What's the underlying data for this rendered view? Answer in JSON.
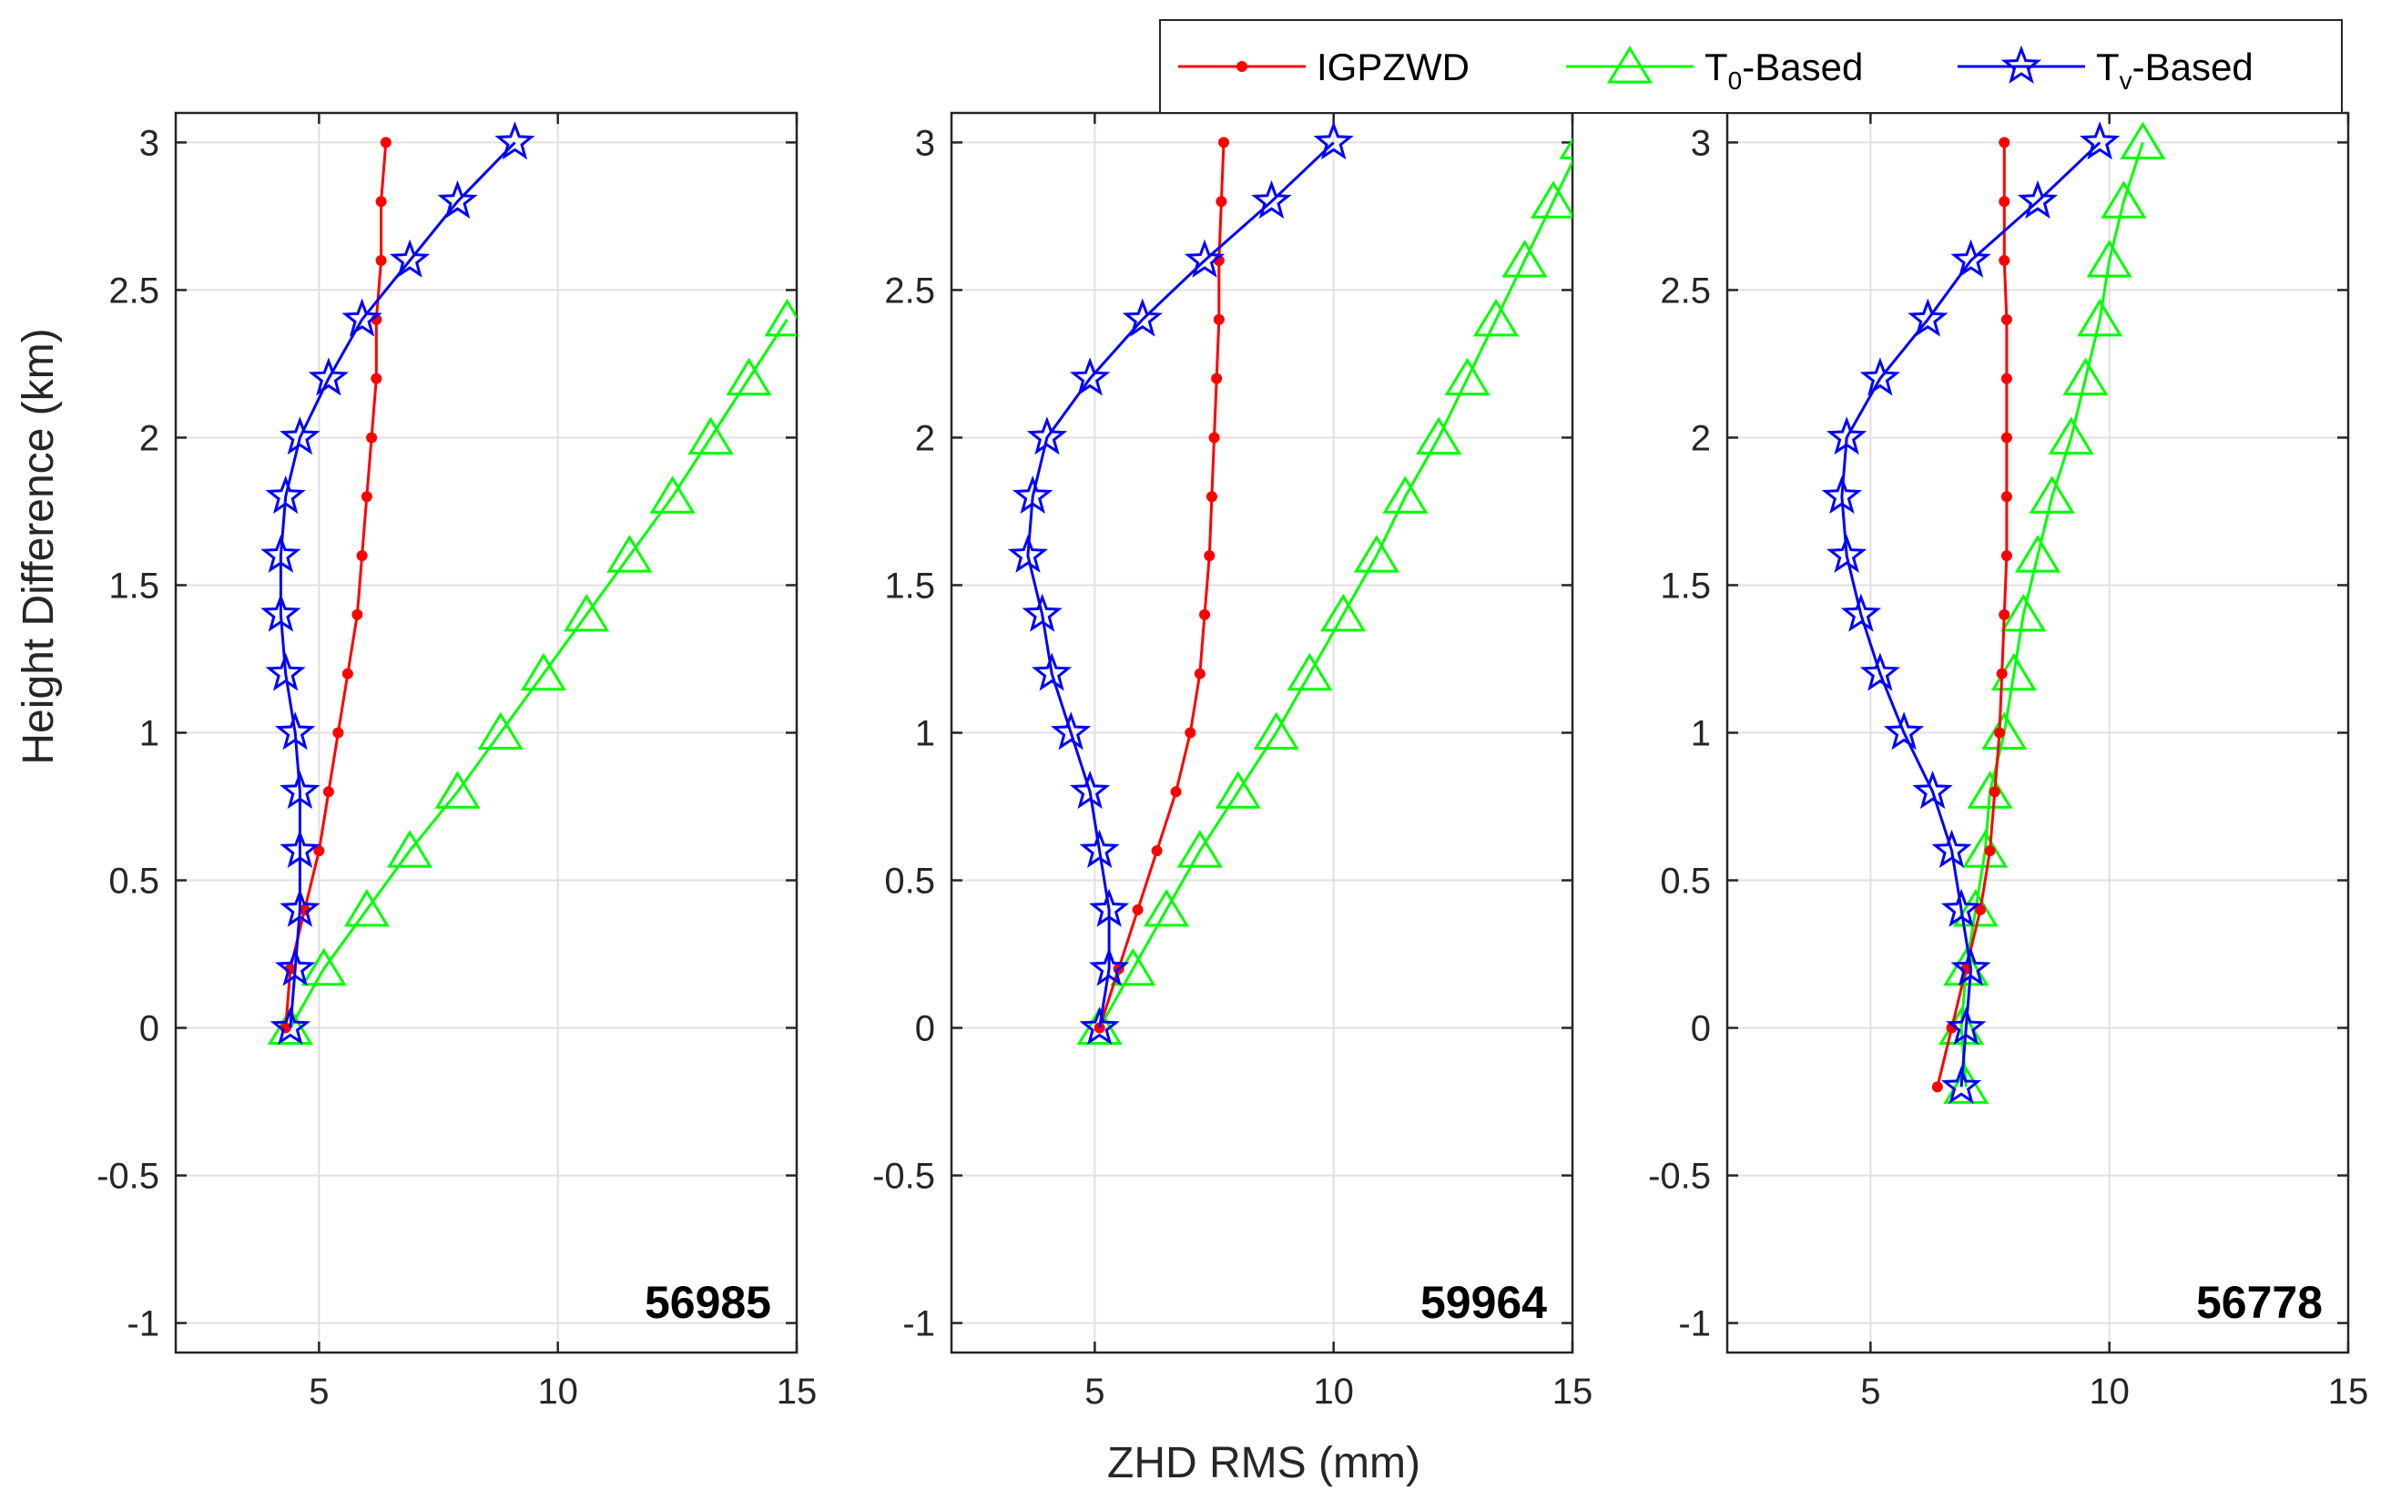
{
  "chart_data": {
    "type": "line",
    "xlabel": "ZHD RMS (mm)",
    "ylabel": "Height Difference (km)",
    "xlim": [
      2,
      15
    ],
    "ylim": [
      -1.1,
      3.1
    ],
    "xticks": [
      5,
      10,
      15
    ],
    "yticks": [
      -1,
      -0.5,
      0,
      0.5,
      1,
      1.5,
      2,
      2.5,
      3
    ],
    "grid": true,
    "legend": {
      "placement": "top-right, outside panels",
      "entries": [
        {
          "label": "IGPZWD",
          "main": "IGPZWD",
          "sub": "",
          "suffix": "",
          "color": "#ff0000",
          "marker": "dot"
        },
        {
          "label": "T0-Based",
          "main": "T",
          "sub": "0",
          "suffix": "-Based",
          "color": "#00ff00",
          "marker": "triangle"
        },
        {
          "label": "Tv-Based",
          "main": "T",
          "sub": "v",
          "suffix": "-Based",
          "color": "#0000ff",
          "marker": "pentagram"
        }
      ]
    },
    "panels": [
      {
        "station": "56985",
        "series": [
          {
            "name": "IGPZWD",
            "points": [
              [
                4.3,
                0
              ],
              [
                4.4,
                0.2
              ],
              [
                4.7,
                0.4
              ],
              [
                5.0,
                0.6
              ],
              [
                5.2,
                0.8
              ],
              [
                5.4,
                1.0
              ],
              [
                5.6,
                1.2
              ],
              [
                5.8,
                1.4
              ],
              [
                5.9,
                1.6
              ],
              [
                6.0,
                1.8
              ],
              [
                6.1,
                2.0
              ],
              [
                6.2,
                2.2
              ],
              [
                6.2,
                2.4
              ],
              [
                6.3,
                2.6
              ],
              [
                6.3,
                2.8
              ],
              [
                6.4,
                3.0
              ]
            ]
          },
          {
            "name": "T0-Based",
            "points": [
              [
                4.4,
                0
              ],
              [
                5.1,
                0.2
              ],
              [
                6.0,
                0.4
              ],
              [
                6.9,
                0.6
              ],
              [
                7.9,
                0.8
              ],
              [
                8.8,
                1.0
              ],
              [
                9.7,
                1.2
              ],
              [
                10.6,
                1.4
              ],
              [
                11.5,
                1.6
              ],
              [
                12.4,
                1.8
              ],
              [
                13.2,
                2.0
              ],
              [
                14.0,
                2.2
              ],
              [
                14.8,
                2.4
              ]
            ]
          },
          {
            "name": "Tv-Based",
            "points": [
              [
                4.4,
                0
              ],
              [
                4.5,
                0.2
              ],
              [
                4.6,
                0.4
              ],
              [
                4.6,
                0.6
              ],
              [
                4.6,
                0.8
              ],
              [
                4.5,
                1.0
              ],
              [
                4.3,
                1.2
              ],
              [
                4.2,
                1.4
              ],
              [
                4.2,
                1.6
              ],
              [
                4.3,
                1.8
              ],
              [
                4.6,
                2.0
              ],
              [
                5.2,
                2.2
              ],
              [
                5.9,
                2.4
              ],
              [
                6.9,
                2.6
              ],
              [
                7.9,
                2.8
              ],
              [
                9.1,
                3.0
              ]
            ]
          }
        ]
      },
      {
        "station": "59964",
        "series": [
          {
            "name": "IGPZWD",
            "points": [
              [
                5.1,
                0
              ],
              [
                5.5,
                0.2
              ],
              [
                5.9,
                0.4
              ],
              [
                6.3,
                0.6
              ],
              [
                6.7,
                0.8
              ],
              [
                7.0,
                1.0
              ],
              [
                7.2,
                1.2
              ],
              [
                7.3,
                1.4
              ],
              [
                7.4,
                1.6
              ],
              [
                7.45,
                1.8
              ],
              [
                7.5,
                2.0
              ],
              [
                7.55,
                2.2
              ],
              [
                7.6,
                2.4
              ],
              [
                7.6,
                2.6
              ],
              [
                7.65,
                2.8
              ],
              [
                7.7,
                3.0
              ]
            ]
          },
          {
            "name": "T0-Based",
            "points": [
              [
                5.1,
                0
              ],
              [
                5.8,
                0.2
              ],
              [
                6.5,
                0.4
              ],
              [
                7.2,
                0.6
              ],
              [
                8.0,
                0.8
              ],
              [
                8.8,
                1.0
              ],
              [
                9.5,
                1.2
              ],
              [
                10.2,
                1.4
              ],
              [
                10.9,
                1.6
              ],
              [
                11.5,
                1.8
              ],
              [
                12.2,
                2.0
              ],
              [
                12.8,
                2.2
              ],
              [
                13.4,
                2.4
              ],
              [
                14.0,
                2.6
              ],
              [
                14.6,
                2.8
              ],
              [
                15.2,
                3.0
              ]
            ]
          },
          {
            "name": "Tv-Based",
            "points": [
              [
                5.1,
                0
              ],
              [
                5.3,
                0.2
              ],
              [
                5.3,
                0.4
              ],
              [
                5.1,
                0.6
              ],
              [
                4.9,
                0.8
              ],
              [
                4.5,
                1.0
              ],
              [
                4.1,
                1.2
              ],
              [
                3.9,
                1.4
              ],
              [
                3.6,
                1.6
              ],
              [
                3.7,
                1.8
              ],
              [
                4.0,
                2.0
              ],
              [
                4.9,
                2.2
              ],
              [
                6.0,
                2.4
              ],
              [
                7.3,
                2.6
              ],
              [
                8.7,
                2.8
              ],
              [
                10.0,
                3.0
              ]
            ]
          }
        ]
      },
      {
        "station": "56778",
        "series": [
          {
            "name": "IGPZWD",
            "points": [
              [
                6.4,
                -0.2
              ],
              [
                6.7,
                0
              ],
              [
                7.0,
                0.2
              ],
              [
                7.3,
                0.4
              ],
              [
                7.5,
                0.6
              ],
              [
                7.6,
                0.8
              ],
              [
                7.7,
                1.0
              ],
              [
                7.75,
                1.2
              ],
              [
                7.8,
                1.4
              ],
              [
                7.85,
                1.6
              ],
              [
                7.85,
                1.8
              ],
              [
                7.85,
                2.0
              ],
              [
                7.85,
                2.2
              ],
              [
                7.85,
                2.4
              ],
              [
                7.8,
                2.6
              ],
              [
                7.8,
                2.8
              ],
              [
                7.8,
                3.0
              ]
            ]
          },
          {
            "name": "T0-Based",
            "points": [
              [
                7.0,
                -0.2
              ],
              [
                6.9,
                0
              ],
              [
                7.0,
                0.2
              ],
              [
                7.2,
                0.4
              ],
              [
                7.4,
                0.6
              ],
              [
                7.5,
                0.8
              ],
              [
                7.8,
                1.0
              ],
              [
                8.0,
                1.2
              ],
              [
                8.2,
                1.4
              ],
              [
                8.5,
                1.6
              ],
              [
                8.8,
                1.8
              ],
              [
                9.2,
                2.0
              ],
              [
                9.5,
                2.2
              ],
              [
                9.8,
                2.4
              ],
              [
                10.0,
                2.6
              ],
              [
                10.3,
                2.8
              ],
              [
                10.7,
                3.0
              ]
            ]
          },
          {
            "name": "Tv-Based",
            "points": [
              [
                6.9,
                -0.2
              ],
              [
                7.0,
                0
              ],
              [
                7.1,
                0.2
              ],
              [
                6.9,
                0.4
              ],
              [
                6.7,
                0.6
              ],
              [
                6.3,
                0.8
              ],
              [
                5.7,
                1.0
              ],
              [
                5.2,
                1.2
              ],
              [
                4.8,
                1.4
              ],
              [
                4.5,
                1.6
              ],
              [
                4.4,
                1.8
              ],
              [
                4.5,
                2.0
              ],
              [
                5.2,
                2.2
              ],
              [
                6.2,
                2.4
              ],
              [
                7.1,
                2.6
              ],
              [
                8.5,
                2.8
              ],
              [
                9.8,
                3.0
              ]
            ]
          }
        ]
      }
    ]
  }
}
